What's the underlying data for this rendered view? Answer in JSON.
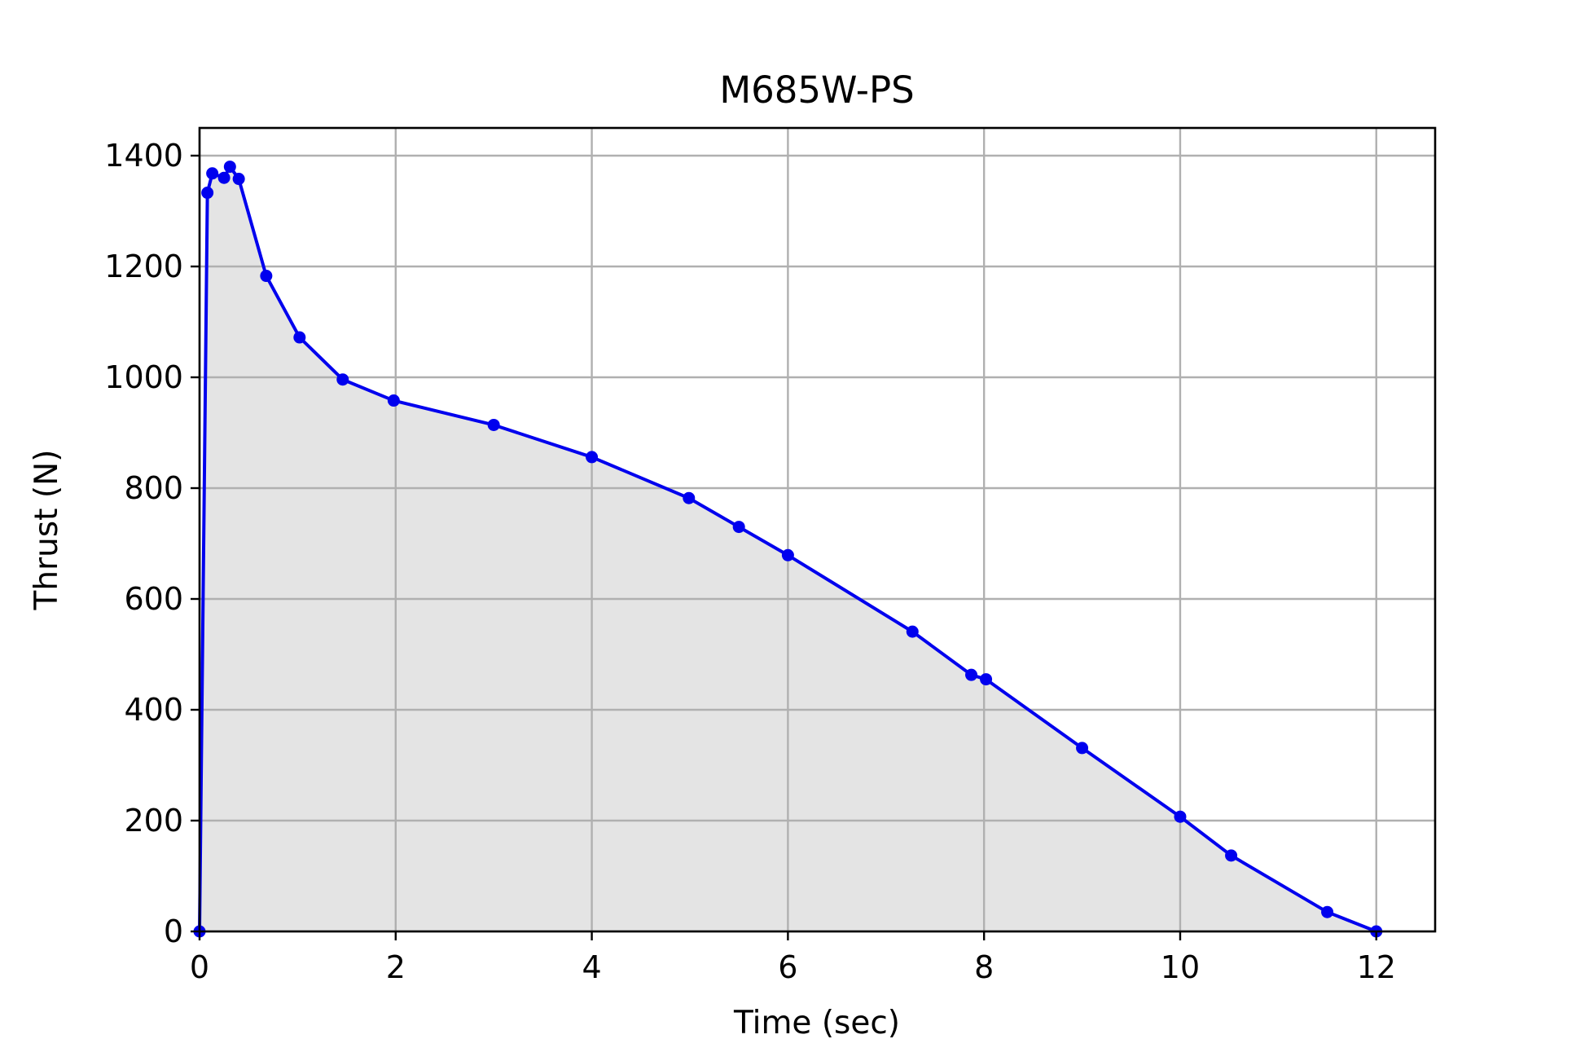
{
  "chart_data": {
    "type": "line",
    "title": "M685W-PS",
    "xlabel": "Time (sec)",
    "ylabel": "Thrust (N)",
    "xlim": [
      0,
      12.6
    ],
    "ylim": [
      0,
      1450
    ],
    "xticks": [
      0,
      2,
      4,
      6,
      8,
      10,
      12
    ],
    "yticks": [
      0,
      200,
      400,
      600,
      800,
      1000,
      1200,
      1400
    ],
    "grid": true,
    "fill_under_curve": true,
    "colors": {
      "line": "#0000ee",
      "fill": "#e4e4e4",
      "grid": "#b0b0b0",
      "frame": "#000000"
    },
    "series": [
      {
        "x": [
          0.0,
          0.08,
          0.13,
          0.25,
          0.31,
          0.4,
          0.68,
          1.02,
          1.46,
          1.98,
          3.0,
          4.0,
          4.99,
          5.5,
          6.0,
          7.27,
          7.87,
          8.02,
          9.0,
          10.0,
          10.52,
          11.5,
          12.0
        ],
        "y": [
          0,
          1333,
          1368,
          1360,
          1380,
          1358,
          1183,
          1072,
          996,
          958,
          914,
          856,
          782,
          730,
          679,
          541,
          463,
          455,
          331,
          207,
          137,
          35,
          0
        ]
      }
    ]
  }
}
